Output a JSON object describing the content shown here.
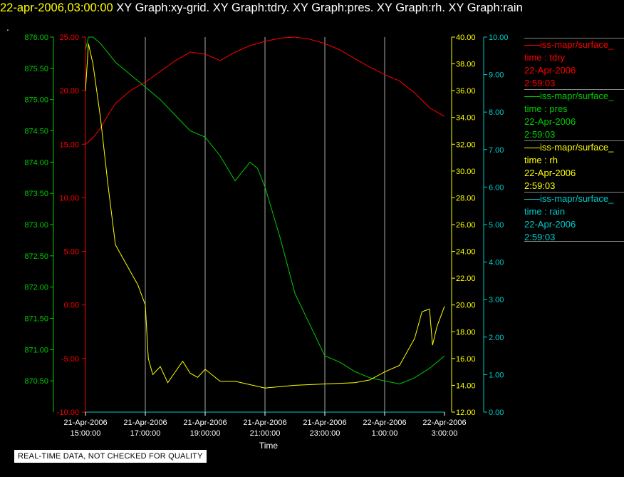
{
  "header": {
    "timestamp": "22-apr-2006,03:00:00",
    "graphs": "  XY Graph:xy-grid.  XY Graph:tdry.  XY Graph:pres.  XY Graph:rh.  XY Graph:rain",
    "dot": "."
  },
  "footer": {
    "disclaimer": "REAL-TIME DATA, NOT CHECKED FOR QUALITY"
  },
  "colors": {
    "tdry": "#ff0000",
    "pres": "#00cc00",
    "rh": "#ffff00",
    "rain": "#00cccc",
    "grid": "#aaaaaa",
    "background": "#000000"
  },
  "legend": [
    {
      "key": "tdry",
      "name": "iss-mapr/surface_",
      "label": "time : tdry",
      "date": "22-Apr-2006",
      "time": "2:59:03"
    },
    {
      "key": "pres",
      "name": "iss-mapr/surface_",
      "label": "time : pres",
      "date": "22-Apr-2006",
      "time": "2:59:03"
    },
    {
      "key": "rh",
      "name": "iss-mapr/surface_",
      "label": "time : rh",
      "date": "22-Apr-2006",
      "time": "2:59:03"
    },
    {
      "key": "rain",
      "name": "iss-mapr/surface_",
      "label": "time : rain",
      "date": "22-Apr-2006",
      "time": "2:59:03"
    }
  ],
  "chart_data": {
    "type": "line",
    "xlabel": "Time",
    "xlim": [
      15.0,
      27.0
    ],
    "x_ticks": [
      15,
      17,
      19,
      21,
      23,
      25,
      27
    ],
    "x_tick_labels": [
      [
        "21-Apr-2006",
        "15:00:00"
      ],
      [
        "21-Apr-2006",
        "17:00:00"
      ],
      [
        "21-Apr-2006",
        "19:00:00"
      ],
      [
        "21-Apr-2006",
        "21:00:00"
      ],
      [
        "21-Apr-2006",
        "23:00:00"
      ],
      [
        "22-Apr-2006",
        "1:00:00"
      ],
      [
        "22-Apr-2006",
        "3:00:00"
      ]
    ],
    "grid": true,
    "axes": [
      {
        "key": "pres",
        "side": "left-outer",
        "range": [
          870.0,
          876.0
        ],
        "ticks": [
          "870.50",
          "871.00",
          "871.50",
          "872.00",
          "872.50",
          "873.00",
          "873.50",
          "874.00",
          "874.50",
          "875.00",
          "875.50",
          "876.00"
        ]
      },
      {
        "key": "tdry",
        "side": "left-inner",
        "range": [
          -10.0,
          25.0
        ],
        "ticks": [
          "-10.00",
          "-5.00",
          "0.00",
          "5.00",
          "10.00",
          "15.00",
          "20.00",
          "25.00"
        ]
      },
      {
        "key": "rh",
        "side": "right-inner",
        "range": [
          12.0,
          40.0
        ],
        "ticks": [
          "12.00",
          "14.00",
          "16.00",
          "18.00",
          "20.00",
          "22.00",
          "24.00",
          "26.00",
          "28.00",
          "30.00",
          "32.00",
          "34.00",
          "36.00",
          "38.00",
          "40.00"
        ]
      },
      {
        "key": "rain",
        "side": "right-outer",
        "range": [
          0.0,
          10.0
        ],
        "ticks": [
          "0.00",
          "1.00",
          "2.00",
          "3.00",
          "4.00",
          "5.00",
          "6.00",
          "7.00",
          "8.00",
          "9.00",
          "10.00"
        ]
      }
    ],
    "series": [
      {
        "key": "tdry",
        "axis": "tdry",
        "x": [
          15.0,
          15.25,
          15.5,
          15.75,
          16.0,
          16.5,
          17.0,
          17.5,
          18.0,
          18.5,
          19.0,
          19.5,
          20.0,
          20.5,
          21.0,
          21.5,
          22.0,
          22.5,
          23.0,
          23.5,
          24.0,
          24.5,
          25.0,
          25.5,
          26.0,
          26.5,
          27.0
        ],
        "y": [
          15.0,
          15.6,
          16.5,
          17.7,
          18.8,
          20.0,
          20.8,
          21.8,
          22.8,
          23.6,
          23.4,
          22.8,
          23.6,
          24.2,
          24.6,
          24.9,
          25.0,
          24.8,
          24.4,
          23.8,
          23.0,
          22.2,
          21.5,
          20.9,
          19.8,
          18.4,
          17.6
        ]
      },
      {
        "key": "pres",
        "axis": "pres",
        "x": [
          15.0,
          15.1,
          15.25,
          15.5,
          16.0,
          16.5,
          17.0,
          17.5,
          18.0,
          18.5,
          19.0,
          19.5,
          20.0,
          20.5,
          20.75,
          21.0,
          21.5,
          22.0,
          22.5,
          23.0,
          23.5,
          24.0,
          24.5,
          25.0,
          25.5,
          26.0,
          26.5,
          27.0
        ],
        "y": [
          875.8,
          876.0,
          876.0,
          875.9,
          875.6,
          875.4,
          875.2,
          875.0,
          874.75,
          874.5,
          874.4,
          874.1,
          873.7,
          874.0,
          873.9,
          873.6,
          872.8,
          871.9,
          871.4,
          870.9,
          870.8,
          870.65,
          870.55,
          870.5,
          870.45,
          870.55,
          870.7,
          870.9
        ]
      },
      {
        "key": "rh",
        "axis": "rh",
        "x": [
          15.0,
          15.1,
          15.25,
          15.5,
          15.75,
          16.0,
          16.25,
          16.5,
          16.75,
          17.0,
          17.1,
          17.25,
          17.5,
          17.75,
          18.0,
          18.25,
          18.5,
          18.75,
          19.0,
          19.5,
          20.0,
          21.0,
          22.0,
          23.0,
          24.0,
          24.5,
          25.0,
          25.5,
          26.0,
          26.25,
          26.5,
          26.6,
          26.75,
          27.0
        ],
        "y": [
          36.0,
          39.5,
          38.0,
          34.0,
          29.0,
          24.5,
          23.5,
          22.5,
          21.5,
          20.0,
          16.0,
          14.8,
          15.4,
          14.2,
          15.0,
          15.8,
          14.9,
          14.6,
          15.2,
          14.3,
          14.3,
          13.8,
          14.0,
          14.1,
          14.2,
          14.4,
          15.0,
          15.5,
          17.5,
          19.5,
          19.7,
          17.0,
          18.4,
          19.9
        ]
      },
      {
        "key": "rain",
        "axis": "rain",
        "x": [
          15.0,
          27.0
        ],
        "y": [
          0.0,
          0.0
        ]
      }
    ]
  }
}
